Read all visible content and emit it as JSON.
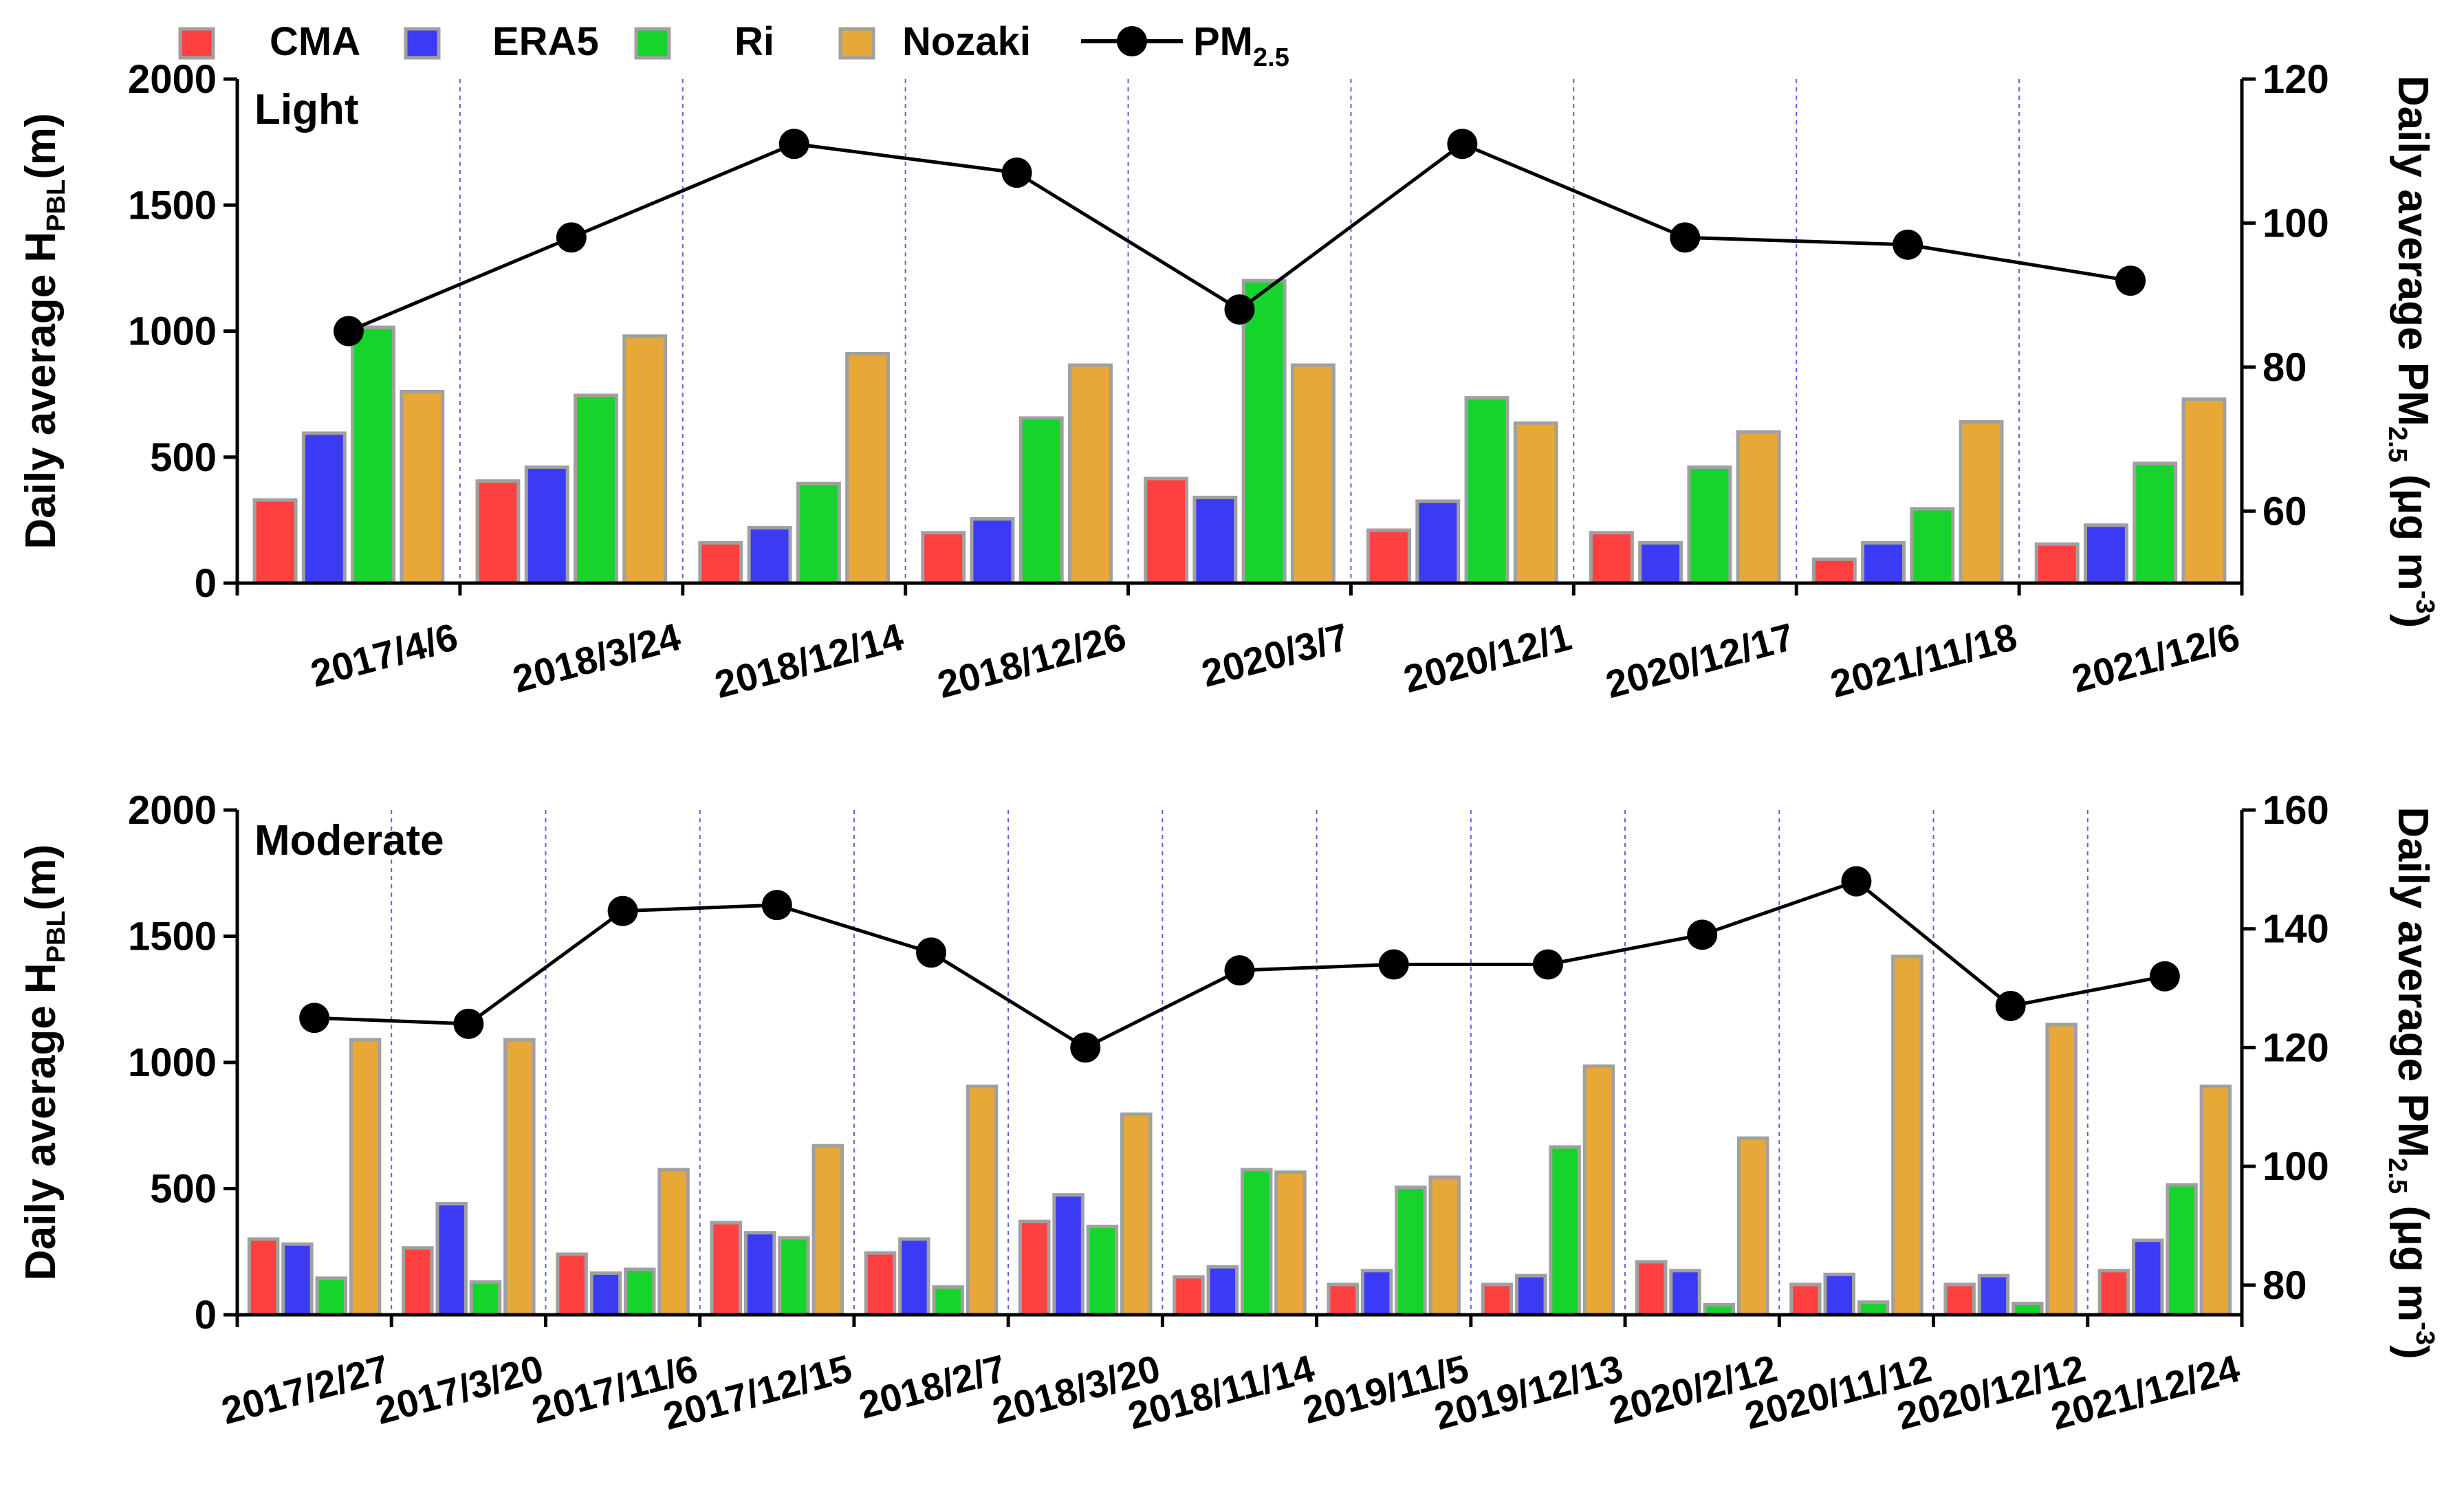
{
  "legend": {
    "items": [
      {
        "label": "CMA",
        "color": "#FF4040"
      },
      {
        "label": "ERA5",
        "color": "#3B3BF5"
      },
      {
        "label": "Ri",
        "color": "#17D42C"
      },
      {
        "label": "Nozaki",
        "color": "#E8A838"
      }
    ],
    "pm_main": "PM",
    "pm_sub": "2.5",
    "pm_color": "#000000"
  },
  "colors": {
    "bar_stroke": "#A0A0A0",
    "grid": "#6060E0",
    "axis": "#000000"
  },
  "chart_data": [
    {
      "type": "bar",
      "title": "Light",
      "categories": [
        "2017/4/6",
        "2018/3/24",
        "2018/12/14",
        "2018/12/26",
        "2020/3/7",
        "2020/12/1",
        "2020/12/17",
        "2021/11/18",
        "2021/12/6"
      ],
      "series": [
        {
          "name": "CMA",
          "values": [
            330,
            405,
            160,
            200,
            415,
            210,
            200,
            95,
            155
          ]
        },
        {
          "name": "ERA5",
          "values": [
            595,
            460,
            220,
            255,
            340,
            325,
            160,
            160,
            230
          ]
        },
        {
          "name": "Ri",
          "values": [
            1015,
            745,
            395,
            655,
            1200,
            735,
            460,
            295,
            475
          ]
        },
        {
          "name": "Nozaki",
          "values": [
            760,
            980,
            910,
            865,
            865,
            635,
            600,
            640,
            730
          ]
        }
      ],
      "line_series": {
        "name": "PM2.5",
        "axis": "right",
        "values": [
          85,
          98,
          111,
          107,
          88,
          111,
          98,
          97,
          92
        ]
      },
      "ylabel_main": "Daily average H",
      "ylabel_sub": "PBL",
      "ylabel_tail": "(m)",
      "ylim": [
        0,
        2000
      ],
      "yticks": [
        0,
        500,
        1000,
        1500,
        2000
      ],
      "y2label_main": "Daily average PM",
      "y2label_sub": "2.5",
      "y2label_tail": " (μg m",
      "y2label_sup": "-3",
      "y2label_end": ")",
      "y2lim": [
        50,
        120
      ],
      "y2ticks": [
        60,
        80,
        100,
        120
      ]
    },
    {
      "type": "bar",
      "title": "Moderate",
      "categories": [
        "2017/2/27",
        "2017/3/20",
        "2017/11/6",
        "2017/12/15",
        "2018/2/7",
        "2018/3/20",
        "2018/11/14",
        "2019/11/5",
        "2019/12/13",
        "2020/2/12",
        "2020/11/12",
        "2020/12/12",
        "2021/12/24"
      ],
      "series": [
        {
          "name": "CMA",
          "values": [
            300,
            265,
            240,
            365,
            245,
            370,
            150,
            120,
            120,
            210,
            120,
            120,
            175
          ]
        },
        {
          "name": "ERA5",
          "values": [
            280,
            440,
            165,
            325,
            300,
            475,
            190,
            175,
            155,
            175,
            160,
            155,
            295
          ]
        },
        {
          "name": "Ri",
          "values": [
            145,
            130,
            180,
            305,
            110,
            350,
            575,
            505,
            665,
            40,
            50,
            45,
            515
          ]
        },
        {
          "name": "Nozaki",
          "values": [
            1090,
            1090,
            575,
            670,
            905,
            795,
            565,
            545,
            985,
            700,
            1420,
            1150,
            905
          ]
        }
      ],
      "line_series": {
        "name": "PM2.5",
        "axis": "right",
        "values": [
          125,
          124,
          143,
          144,
          136,
          120,
          133,
          134,
          134,
          139,
          148,
          127,
          132
        ]
      },
      "ylabel_main": "Daily average H",
      "ylabel_sub": "PBL",
      "ylabel_tail": "(m)",
      "ylim": [
        0,
        2000
      ],
      "yticks": [
        0,
        500,
        1000,
        1500,
        2000
      ],
      "y2label_main": "Daily average PM",
      "y2label_sub": "2.5",
      "y2label_tail": " (μg m",
      "y2label_sup": "-3",
      "y2label_end": ")",
      "y2lim": [
        75,
        160
      ],
      "y2ticks": [
        80,
        100,
        120,
        140,
        160
      ]
    }
  ]
}
